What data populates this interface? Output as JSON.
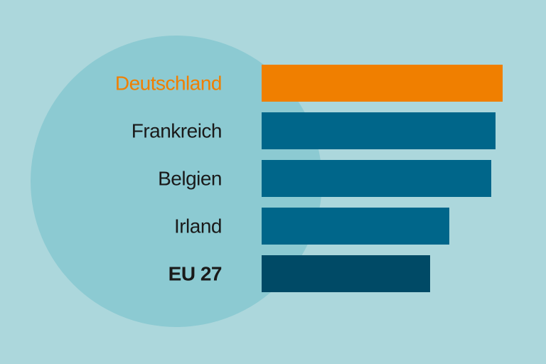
{
  "chart_data": {
    "type": "barh",
    "categories": [
      "Deutschland",
      "Frankreich",
      "Belgien",
      "Irland",
      "EU 27"
    ],
    "values": [
      339,
      329,
      323,
      264,
      237
    ],
    "colors": [
      "#f07f00",
      "#00668a",
      "#00668a",
      "#00668a",
      "#004a66"
    ],
    "label_colors": [
      "#f07f00",
      "#1a1a1a",
      "#1a1a1a",
      "#1a1a1a",
      "#1a1a1a"
    ],
    "label_weights": [
      "normal",
      "normal",
      "normal",
      "normal",
      "bold"
    ],
    "xlim": [
      0,
      400
    ]
  }
}
